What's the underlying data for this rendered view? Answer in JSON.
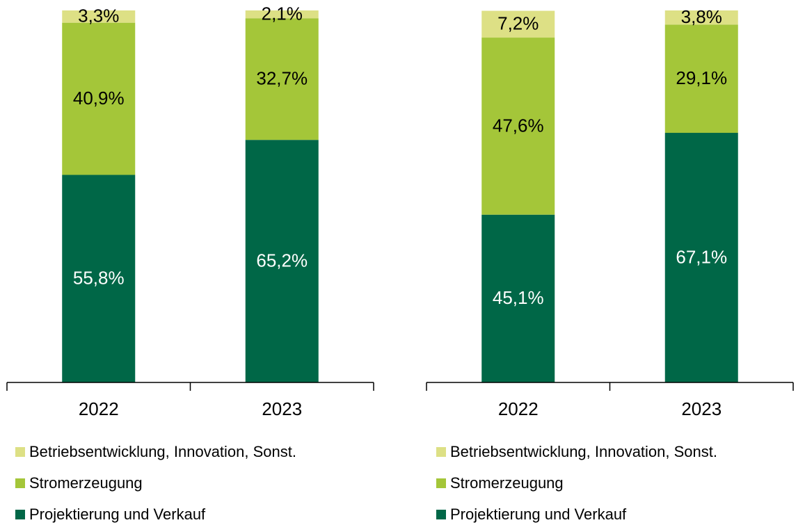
{
  "chart_data": [
    {
      "type": "bar",
      "stacked": true,
      "categories": [
        "2022",
        "2023"
      ],
      "ylim": [
        0,
        100
      ],
      "series": [
        {
          "name": "Projektierung und Verkauf",
          "color": "#006747",
          "values": [
            55.8,
            65.2
          ],
          "value_labels": [
            "55,8%",
            "65,2%"
          ]
        },
        {
          "name": "Stromerzeugung",
          "color": "#a4c639",
          "values": [
            40.9,
            32.7
          ],
          "value_labels": [
            "40,9%",
            "32,7%"
          ]
        },
        {
          "name": "Betriebsentwicklung, Innovation, Sonst.",
          "color": "#dde085",
          "values": [
            3.3,
            2.1
          ],
          "value_labels": [
            "3,3%",
            "2,1%"
          ]
        }
      ]
    },
    {
      "type": "bar",
      "stacked": true,
      "categories": [
        "2022",
        "2023"
      ],
      "ylim": [
        0,
        100
      ],
      "series": [
        {
          "name": "Projektierung und Verkauf",
          "color": "#006747",
          "values": [
            45.1,
            67.1
          ],
          "value_labels": [
            "45,1%",
            "67,1%"
          ]
        },
        {
          "name": "Stromerzeugung",
          "color": "#a4c639",
          "values": [
            47.6,
            29.1
          ],
          "value_labels": [
            "47,6%",
            "29,1%"
          ]
        },
        {
          "name": "Betriebsentwicklung, Innovation, Sonst.",
          "color": "#dde085",
          "values": [
            7.2,
            3.8
          ],
          "value_labels": [
            "7,2%",
            "3,8%"
          ]
        }
      ]
    }
  ]
}
